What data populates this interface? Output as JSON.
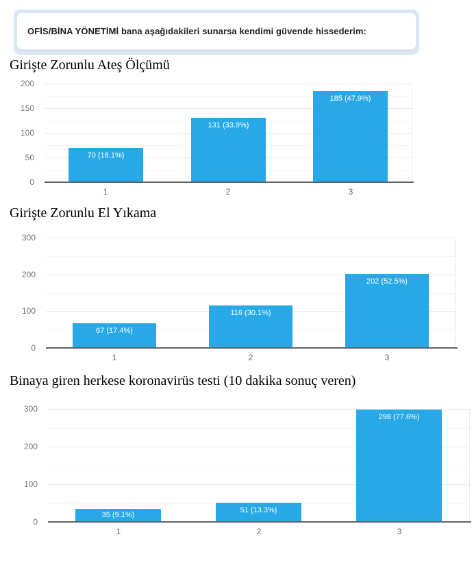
{
  "header": {
    "question": "OFİS/BİNA YÖNETİMİ bana aşağıdakileri sunarsa kendimi güvende hissederim:"
  },
  "colors": {
    "bar": "#27a9e8",
    "header_band": "#d8e7f4",
    "axis_line": "#5f6368",
    "grid_major": "#e9e9e9",
    "grid_minor": "#f5f5f5",
    "tick_label": "#757575",
    "value_label": "#ffffff"
  },
  "chart_data": [
    {
      "type": "bar",
      "title": "Girişte Zorunlu Ateş Ölçümü",
      "categories": [
        "1",
        "2",
        "3"
      ],
      "values": [
        70,
        131,
        185
      ],
      "value_labels": [
        "70 (18.1%)",
        "131 (33.9%)",
        "185 (47.9%)"
      ],
      "xlabel": "",
      "ylabel": "",
      "ylim": [
        0,
        200
      ],
      "yticks": [
        0,
        50,
        100,
        150,
        200
      ],
      "minor_step": 25,
      "grid": true,
      "legend": "none"
    },
    {
      "type": "bar",
      "title": "Girişte Zorunlu El Yıkama",
      "categories": [
        "1",
        "2",
        "3"
      ],
      "values": [
        67,
        116,
        202
      ],
      "value_labels": [
        "67 (17.4%)",
        "116 (30.1%)",
        "202 (52.5%)"
      ],
      "xlabel": "",
      "ylabel": "",
      "ylim": [
        0,
        300
      ],
      "yticks": [
        0,
        100,
        200,
        300
      ],
      "minor_step": 50,
      "grid": true,
      "legend": "none"
    },
    {
      "type": "bar",
      "title": "Binaya giren herkese koronavirüs testi (10 dakika sonuç veren)",
      "categories": [
        "1",
        "2",
        "3"
      ],
      "values": [
        35,
        51,
        298
      ],
      "value_labels": [
        "35 (9.1%)",
        "51 (13.3%)",
        "298 (77.6%)"
      ],
      "xlabel": "",
      "ylabel": "",
      "ylim": [
        0,
        300
      ],
      "yticks": [
        0,
        100,
        200,
        300
      ],
      "minor_step": 50,
      "grid": true,
      "legend": "none"
    }
  ]
}
